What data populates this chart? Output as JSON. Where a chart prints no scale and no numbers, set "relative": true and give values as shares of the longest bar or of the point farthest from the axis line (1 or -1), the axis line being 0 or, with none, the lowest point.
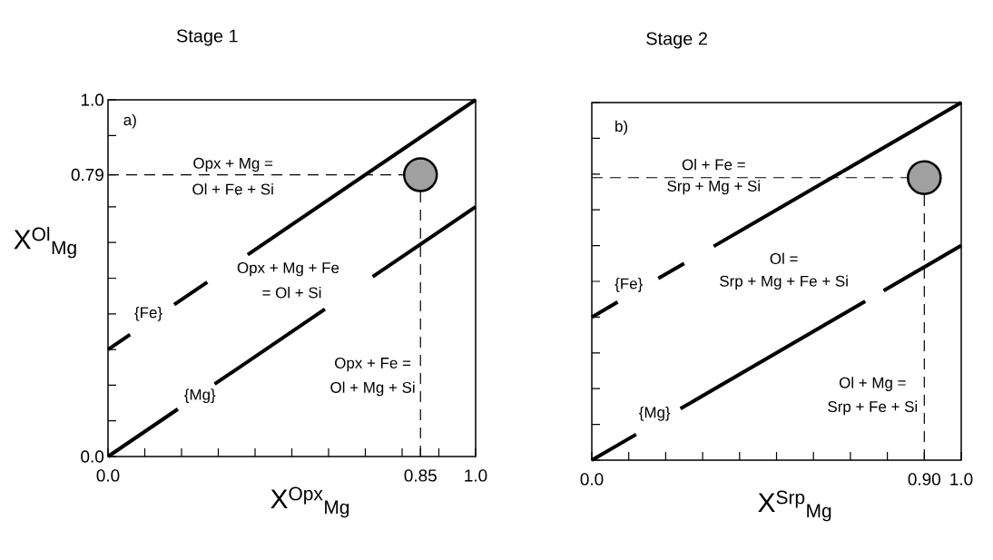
{
  "chart_data": [
    {
      "type": "line",
      "title": "Stage 1",
      "xlabel": "X$^{Opx}$$_{Mg}$",
      "ylabel": "X$^{Ol}$$_{Mg}$",
      "xlim": [
        0,
        1
      ],
      "ylim": [
        0,
        1
      ],
      "xticks": [
        {
          "value": 0,
          "label": "0.0"
        },
        {
          "value": 0.1,
          "label": null
        },
        {
          "value": 0.2,
          "label": null
        },
        {
          "value": 0.3,
          "label": null
        },
        {
          "value": 0.4,
          "label": null
        },
        {
          "value": 0.5,
          "label": null
        },
        {
          "value": 0.6,
          "label": null
        },
        {
          "value": 0.7,
          "label": null
        },
        {
          "value": 0.8,
          "label": null
        },
        {
          "value": 0.85,
          "label": "0.85"
        },
        {
          "value": 0.9,
          "label": null
        },
        {
          "value": 1,
          "label": "1.0"
        }
      ],
      "yticks": [
        {
          "value": 0,
          "label": "0.0"
        },
        {
          "value": 0.1,
          "label": null
        },
        {
          "value": 0.2,
          "label": null
        },
        {
          "value": 0.3,
          "label": null
        },
        {
          "value": 0.4,
          "label": null
        },
        {
          "value": 0.5,
          "label": null
        },
        {
          "value": 0.6,
          "label": null
        },
        {
          "value": 0.7,
          "label": null
        },
        {
          "value": 0.79,
          "label": "0.79"
        },
        {
          "value": 0.9,
          "label": null
        },
        {
          "value": 1,
          "label": "1.0"
        }
      ],
      "series": [
        {
          "color": "#000000",
          "x": [
            0,
            0.06,
            0.12,
            0.18,
            0.27,
            0.32,
            0.38,
            1
          ],
          "values": [
            0.3,
            0.342,
            null,
            0.426,
            0.489,
            null,
            0.566,
            1
          ]
        },
        {
          "color": "#000000",
          "x": [
            0,
            0.19,
            0.24,
            0.29,
            0.59,
            0.65,
            0.72,
            1
          ],
          "values": [
            0,
            0.133,
            null,
            0.203,
            0.413,
            null,
            0.504,
            0.7
          ]
        },
        {
          "type": "scatter",
          "marker": "circle",
          "color": "#a0a0a0",
          "x": [
            0.85
          ],
          "values": [
            0.79
          ]
        }
      ],
      "ref_lines": [
        {
          "axis": "y",
          "value": 0.79,
          "line_style": "dashed",
          "color": "#000000"
        },
        {
          "axis": "x",
          "value": 0.85,
          "line_style": "dashed",
          "color": "#000000"
        }
      ],
      "annotations": [
        "a)",
        "Opx + Mg =",
        "Ol + Fe + Si",
        "Opx + Mg + Fe",
        "= Ol + Si",
        "{Fe}",
        "{Mg}",
        "Opx + Fe =",
        "Ol + Mg + Si"
      ]
    },
    {
      "type": "line",
      "title": "Stage 2",
      "xlabel": "X$^{Srp}$$_{Mg}$",
      "xlim": [
        0,
        1
      ],
      "relative": true,
      "tick_labels": "x",
      "xticks": [
        {
          "value": 0,
          "label": "0.0"
        },
        {
          "value": 0.1,
          "label": null
        },
        {
          "value": 0.2,
          "label": null
        },
        {
          "value": 0.3,
          "label": null
        },
        {
          "value": 0.4,
          "label": null
        },
        {
          "value": 0.5,
          "label": null
        },
        {
          "value": 0.6,
          "label": null
        },
        {
          "value": 0.7,
          "label": null
        },
        {
          "value": 0.8,
          "label": null
        },
        {
          "value": 0.9,
          "label": "0.90"
        },
        {
          "value": 1,
          "label": "1.0"
        }
      ],
      "series": [
        {
          "color": "#000000",
          "x": [
            0,
            0.07,
            0.12,
            0.18,
            0.25,
            0.29,
            0.33,
            1
          ],
          "values": [
            0.4,
            0.442,
            null,
            0.508,
            0.55,
            null,
            0.598,
            1
          ]
        },
        {
          "color": "#000000",
          "x": [
            0,
            0.12,
            0.18,
            0.24,
            0.74,
            0.765,
            0.79,
            1
          ],
          "values": [
            0,
            0.072,
            null,
            0.144,
            0.444,
            null,
            0.474,
            0.6
          ]
        },
        {
          "type": "scatter",
          "marker": "circle",
          "color": "#a0a0a0",
          "x": [
            0.9
          ],
          "values": [
            0.79
          ]
        }
      ],
      "ref_lines": [
        {
          "axis": "y",
          "value": 0.79,
          "line_style": "dashed",
          "color": "#000000"
        },
        {
          "axis": "x",
          "value": 0.9,
          "line_style": "dashed",
          "color": "#000000"
        }
      ],
      "annotations": [
        "b)",
        "Ol + Fe =",
        "Srp + Mg + Si",
        "Ol =",
        "Srp + Mg + Fe + Si",
        "{Fe}",
        "{Mg}",
        "Ol + Mg =",
        "Srp + Fe + Si"
      ]
    }
  ]
}
